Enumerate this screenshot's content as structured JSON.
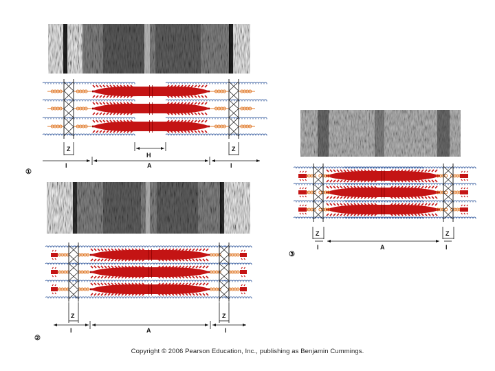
{
  "copyright": "Copyright © 2006 Pearson Education, Inc., publishing as Benjamin Cummings.",
  "colors": {
    "myosin": "#c41414",
    "myosin_dark": "#8a0000",
    "actin": "#3a5fa0",
    "titin": "#e07a2a",
    "zdisc": "#222222",
    "micrograph_dark": "#151515",
    "micrograph_light": "#e6e6e6"
  },
  "panels": [
    {
      "step_label": "①",
      "z_label": "Z",
      "i_label": "I",
      "a_label": "A",
      "h_label": "H",
      "state": "relaxed"
    },
    {
      "step_label": "②",
      "z_label": "Z",
      "i_label": "I",
      "a_label": "A",
      "state": "contracting"
    },
    {
      "step_label": "③",
      "z_label": "Z",
      "i_label": "I",
      "a_label": "A",
      "state": "fully contracted"
    }
  ]
}
